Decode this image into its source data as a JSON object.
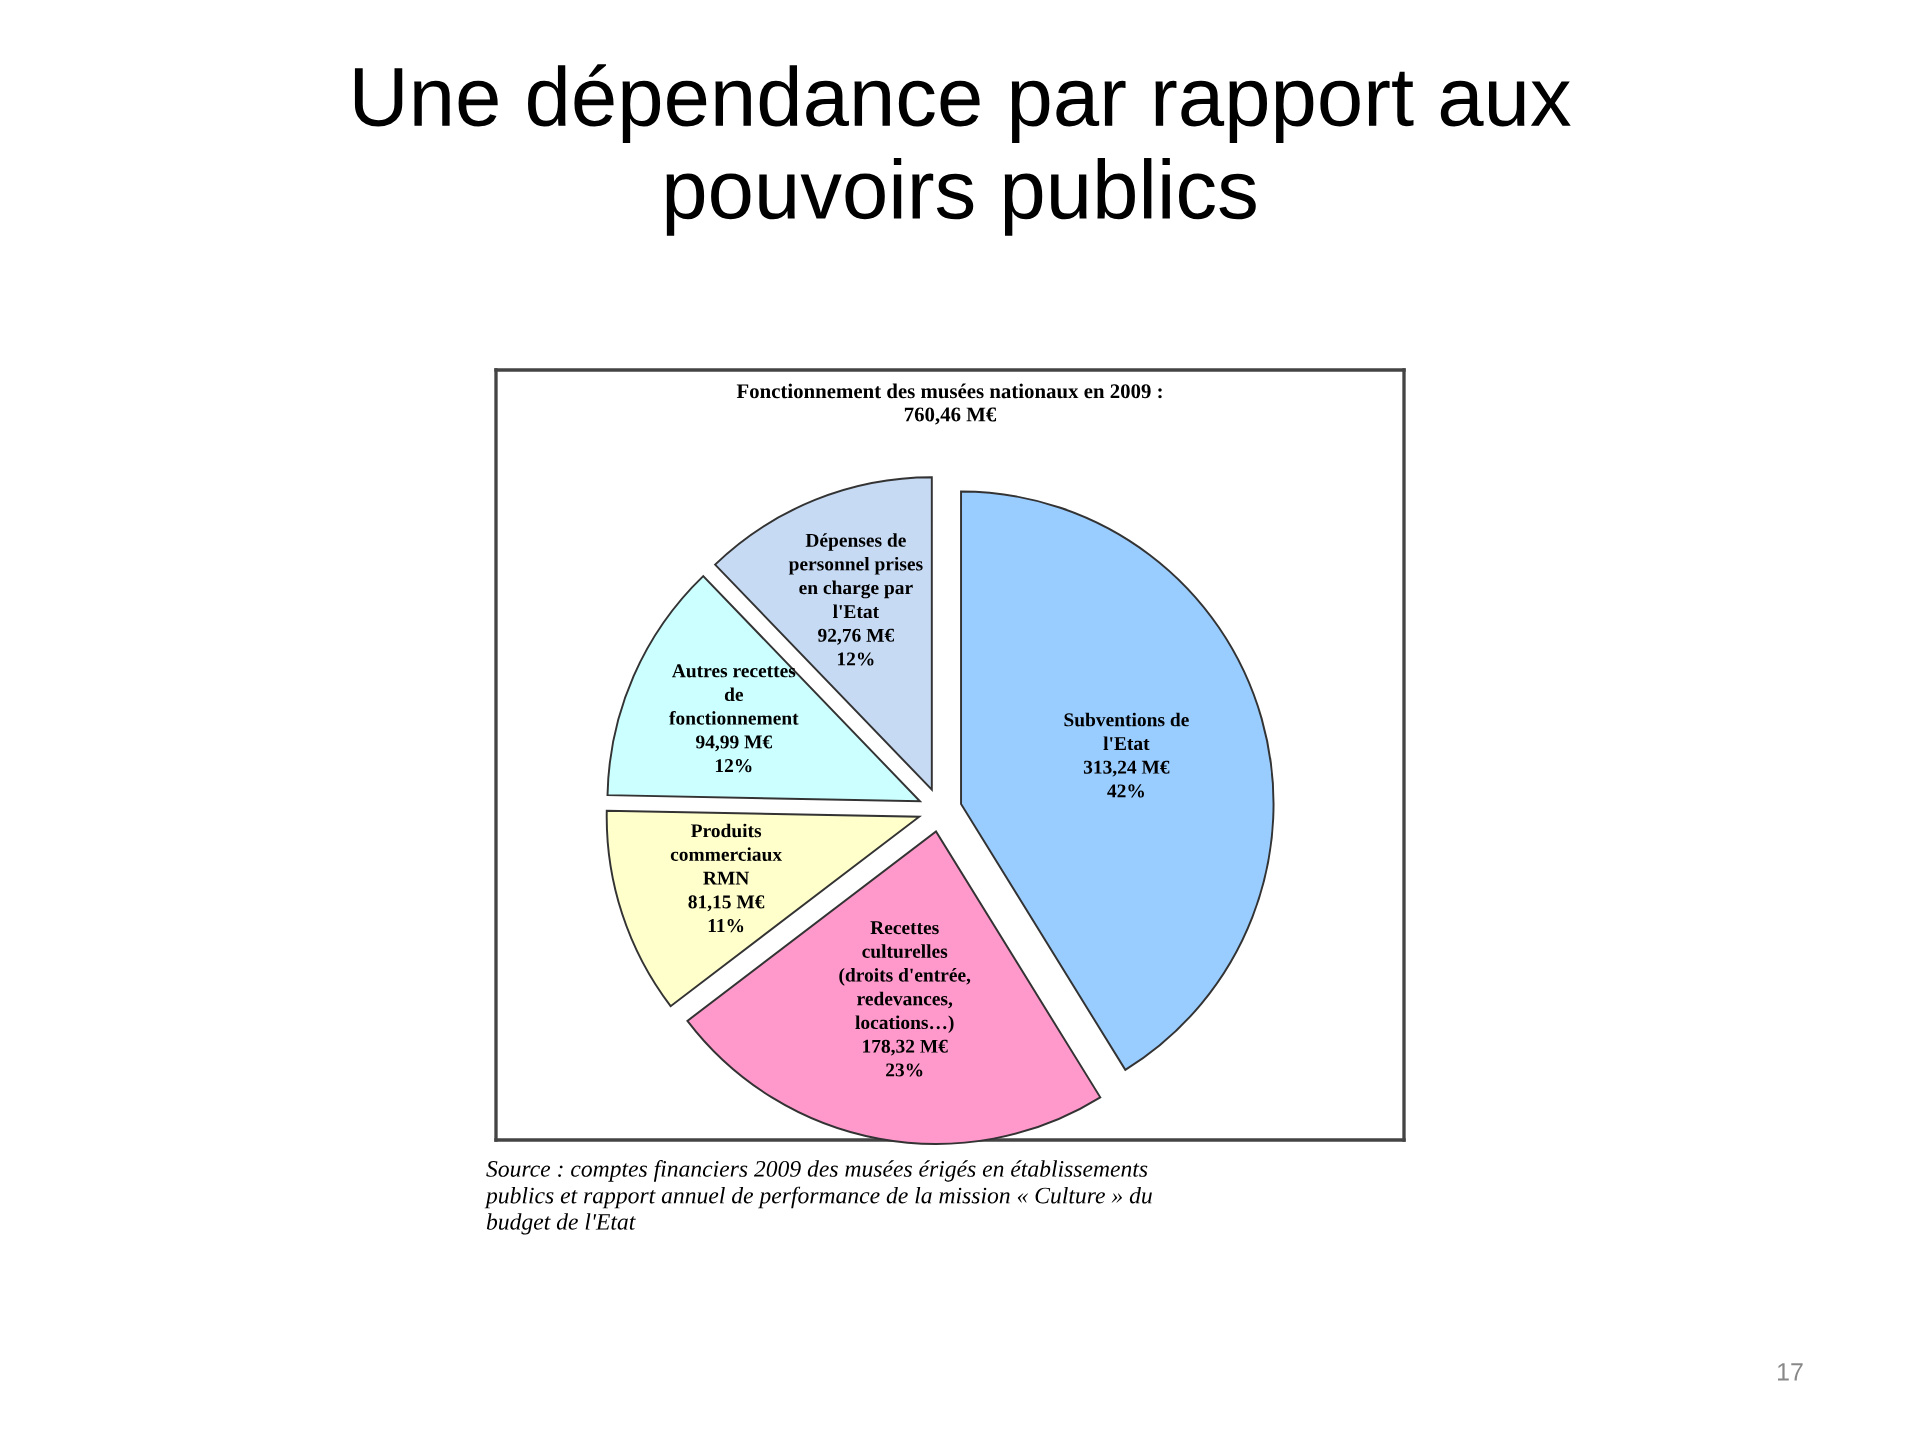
{
  "chart_data": {
    "type": "pie",
    "title": "Une dépendance par rapport aux\npouvoirs publics",
    "subtitle": "Fonctionnement des musées nationaux en 2009 :\n760,46 M€",
    "categories": [
      "Subventions de\nl'Etat",
      "Recettes\nculturelles\n(droits d'entrée,\nredevances,\nlocations…)",
      "Produits\ncommerciaux\nRMN",
      "Autres recettes\nde\nfonctionnement",
      "Dépenses de\npersonnel prises\nen charge par\nl'Etat"
    ],
    "values": [
      313.24,
      178.32,
      81.15,
      94.99,
      92.76
    ],
    "value_labels": [
      "313,24 M€\n42%",
      "178,32 M€\n23%",
      "81,15 M€\n11%",
      "94,99 M€\n12%",
      "92,76 M€\n12%"
    ],
    "colors": [
      "#99ccff",
      "#ff99cc",
      "#ffffcc",
      "#ccffff",
      "#c6daf3"
    ],
    "annotations": [
      "Source : comptes financiers 2009 des musées érigés en établissements\npublics et rapport annuel de performance de la mission « Culture » du\nbudget de l'Etat",
      "17"
    ],
    "legend": false
  }
}
